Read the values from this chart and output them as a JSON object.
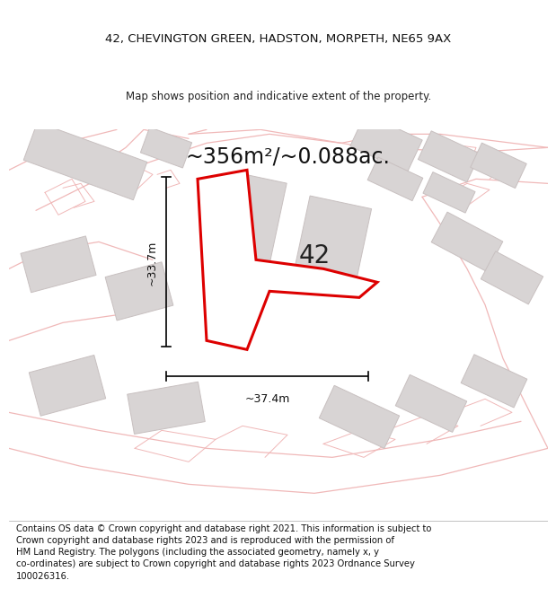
{
  "title_line1": "42, CHEVINGTON GREEN, HADSTON, MORPETH, NE65 9AX",
  "title_line2": "Map shows position and indicative extent of the property.",
  "area_text": "~356m²/~0.088ac.",
  "label_42": "42",
  "dim_vertical": "~33.7m",
  "dim_horizontal": "~37.4m",
  "footer_text": "Contains OS data © Crown copyright and database right 2021. This information is subject to Crown copyright and database rights 2023 and is reproduced with the permission of HM Land Registry. The polygons (including the associated geometry, namely x, y co-ordinates) are subject to Crown copyright and database rights 2023 Ordnance Survey 100026316.",
  "map_bg": "#f7f3f3",
  "road_stroke": "#f0b8b8",
  "building_fill": "#d8d4d4",
  "building_edge": "#c8c0c0",
  "plot_color": "#dd0000",
  "fig_width": 6.0,
  "fig_height": 6.25,
  "title_fontsize": 9.5,
  "subtitle_fontsize": 8.5,
  "area_fontsize": 17,
  "dim_fontsize": 9,
  "label_fontsize": 20,
  "footer_fontsize": 7.2
}
